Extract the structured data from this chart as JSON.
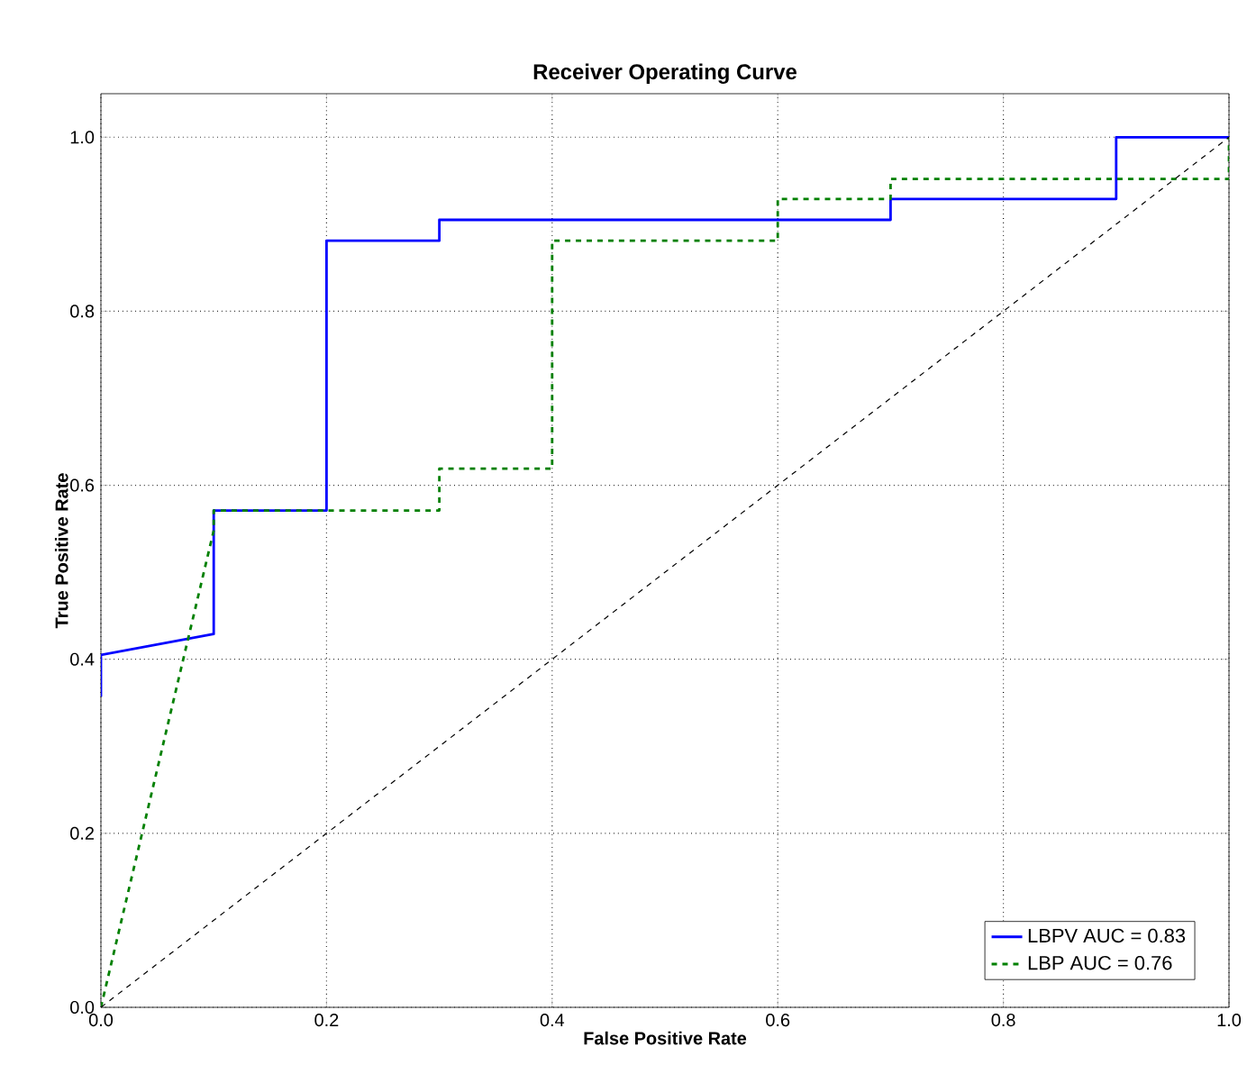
{
  "chart_data": {
    "type": "line",
    "title": "Receiver Operating Curve",
    "xlabel": "False Positive Rate",
    "ylabel": "True Positive Rate",
    "xlim": [
      0,
      1
    ],
    "ylim": [
      0,
      1.05
    ],
    "xticks": [
      {
        "value": 0,
        "label": "0.0"
      },
      0.2,
      0.4,
      0.6,
      0.8,
      {
        "value": 1,
        "label": "1.0"
      }
    ],
    "yticks": [
      {
        "value": 0,
        "label": "0.0"
      },
      0.2,
      0.4,
      0.6,
      0.8,
      {
        "value": 1,
        "label": "1.0"
      }
    ],
    "grid": true,
    "legend": "bottom right",
    "marker": "none",
    "series": [
      {
        "name": "LBPV AUC = 0.83",
        "color": "#0000ff",
        "line_style": "solid",
        "x": [
          0,
          0,
          0.1,
          0.1,
          0.2,
          0.2,
          0.3,
          0.3,
          0.7,
          0.7,
          0.9,
          0.9,
          1.0
        ],
        "values": [
          0.357,
          0.405,
          0.429,
          0.571,
          0.571,
          0.881,
          0.881,
          0.905,
          0.905,
          0.929,
          0.929,
          1.0,
          1.0
        ]
      },
      {
        "name": "LBP AUC = 0.76",
        "color": "#008000",
        "line_style": "dashed",
        "x": [
          0,
          0.1,
          0.1,
          0.3,
          0.3,
          0.4,
          0.4,
          0.6,
          0.6,
          0.7,
          0.7,
          1.0,
          1.0
        ],
        "values": [
          0,
          0.548,
          0.571,
          0.571,
          0.619,
          0.619,
          0.881,
          0.881,
          0.929,
          0.929,
          0.952,
          0.952,
          1.0
        ]
      },
      {
        "color": "#000000",
        "line_style": "dashed",
        "x": [
          0,
          1
        ],
        "values": [
          0,
          1
        ]
      }
    ]
  }
}
